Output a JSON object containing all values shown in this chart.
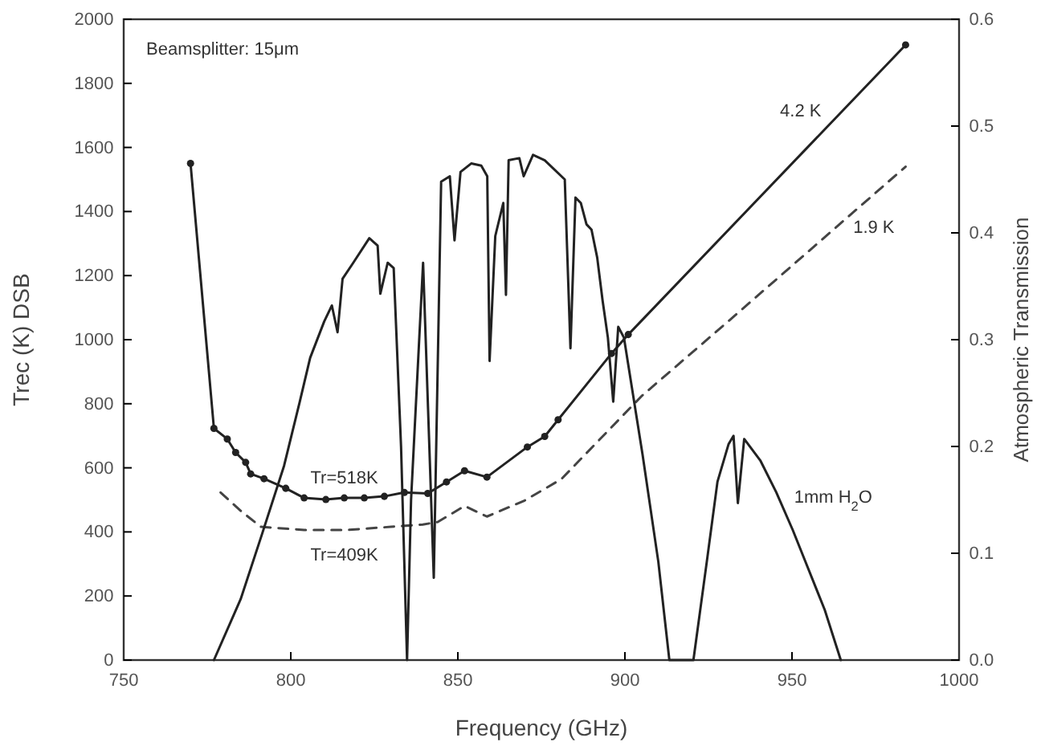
{
  "chart_data": {
    "type": "line",
    "xlabel": "Frequency (GHz)",
    "ylabel": "Trec (K) DSB",
    "y2label": "Atmospheric Transmission",
    "xlim": [
      750,
      1000
    ],
    "xticks": [
      750,
      800,
      850,
      900,
      950,
      1000
    ],
    "ylim": [
      0,
      2000
    ],
    "yticks": [
      0,
      200,
      400,
      600,
      800,
      1000,
      1200,
      1400,
      1600,
      1800,
      2000
    ],
    "y2lim": [
      0,
      0.6
    ],
    "y2ticks": [
      {
        "value": 0,
        "label": "0.0"
      },
      {
        "value": 0.1,
        "label": "0.1"
      },
      {
        "value": 0.2,
        "label": "0.2"
      },
      {
        "value": 0.3,
        "label": "0.3"
      },
      {
        "value": 0.4,
        "label": "0.4"
      },
      {
        "value": 0.5,
        "label": "0.5"
      },
      {
        "value": 0.6,
        "label": "0.6"
      }
    ],
    "grid": false,
    "annotations": [
      "Beamsplitter: 15μm",
      {
        "text": "Tr=518K",
        "x": 816,
        "y": 506
      },
      {
        "text": "Tr=409K",
        "x": 816,
        "y": 406
      }
    ],
    "series": [
      {
        "name": "4.2 K",
        "color": "#222222",
        "marker": "circle",
        "line_style": "solid",
        "x": [
          770,
          777,
          781,
          783.5,
          786.5,
          788,
          792,
          798.5,
          804,
          810.5,
          816,
          822,
          828,
          834,
          841,
          846.6,
          852,
          858.7,
          870.8,
          876,
          880,
          896,
          901,
          984
        ],
        "values": [
          1550,
          723,
          690,
          648,
          617,
          581,
          566,
          536,
          506,
          501,
          506,
          506,
          511,
          523,
          520,
          556,
          591,
          571,
          665,
          698,
          750,
          957,
          1016,
          1920
        ]
      },
      {
        "name": "1.9 K",
        "color": "#444444",
        "marker": "none",
        "line_style": "dashed",
        "x": [
          779,
          785,
          791,
          804,
          817,
          830,
          839.5,
          844,
          852,
          858.7,
          870,
          881,
          905,
          931,
          984
        ],
        "values": [
          523,
          466,
          416,
          406,
          406,
          416,
          423,
          431,
          481,
          448,
          498,
          565,
          824,
          1058,
          1540
        ]
      },
      {
        "name": "1mm H$_{2}$O",
        "color": "#222222",
        "marker": "none",
        "line_style": "solid",
        "axis": "y2",
        "x": [
          777,
          785,
          791.3,
          798,
          802.7,
          805.8,
          810,
          812.3,
          814,
          815.5,
          818.7,
          823.5,
          826,
          826.8,
          829,
          830.8,
          833,
          834.8,
          836,
          839.6,
          842.8,
          845,
          847.6,
          849,
          850.8,
          854,
          857,
          858.8,
          859.5,
          861.2,
          863.6,
          864.4,
          865.2,
          868.4,
          869.7,
          872.5,
          876,
          882,
          883.7,
          885.2,
          886.8,
          888.5,
          890,
          891.7,
          893.3,
          894.9,
          896.5,
          898,
          899.7,
          905.3,
          910,
          913.3,
          920.5,
          924.5,
          927.7,
          931,
          932.5,
          933.8,
          935.7,
          940.5,
          945.3,
          950.2,
          953.4,
          959.8,
          964.6
        ],
        "values": [
          0,
          0.057,
          0.117,
          0.182,
          0.242,
          0.283,
          0.317,
          0.332,
          0.307,
          0.357,
          0.372,
          0.395,
          0.388,
          0.343,
          0.372,
          0.367,
          0.2,
          0,
          0.15,
          0.372,
          0.077,
          0.448,
          0.453,
          0.393,
          0.457,
          0.465,
          0.463,
          0.453,
          0.28,
          0.397,
          0.428,
          0.342,
          0.468,
          0.47,
          0.453,
          0.473,
          0.468,
          0.45,
          0.292,
          0.433,
          0.428,
          0.408,
          0.403,
          0.377,
          0.337,
          0.302,
          0.242,
          0.312,
          0.302,
          0.192,
          0.092,
          0,
          0,
          0.092,
          0.167,
          0.202,
          0.21,
          0.147,
          0.207,
          0.187,
          0.157,
          0.122,
          0.097,
          0.047,
          0
        ]
      }
    ]
  }
}
